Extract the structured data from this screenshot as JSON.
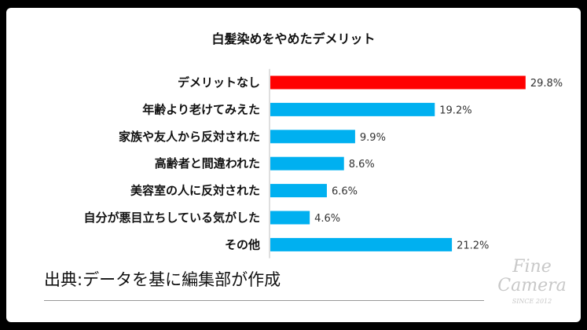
{
  "chart_data": {
    "type": "bar",
    "orientation": "horizontal",
    "title": "白髪染めをやめたデメリット",
    "categories": [
      "デメリットなし",
      "年齢より老けてみえた",
      "家族や友人から反対された",
      "高齢者と間違われた",
      "美容室の人に反対された",
      "自分が悪目立ちしている気がした",
      "その他"
    ],
    "values": [
      29.8,
      19.2,
      9.9,
      8.6,
      6.6,
      4.6,
      21.2
    ],
    "value_labels": [
      "29.8%",
      "19.2%",
      "9.9%",
      "8.6%",
      "6.6%",
      "4.6%",
      "21.2%"
    ],
    "unit": "%",
    "xlim": [
      0,
      30
    ],
    "grid": false,
    "legend": "none",
    "colors": {
      "highlight": "#ff0000",
      "default": "#00b0f0"
    }
  },
  "source_note": "出典:データを基に編集部が作成",
  "watermark": {
    "line1": "Fine",
    "line2": "Camera",
    "line3": "SINCE 2012"
  }
}
